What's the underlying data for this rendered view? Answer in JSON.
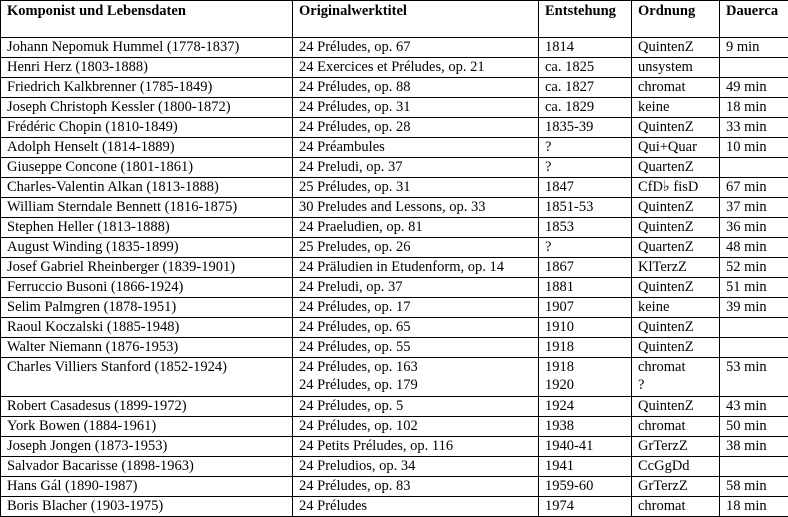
{
  "headers": {
    "composer": "Komponist und Lebensdaten",
    "title": "Originalwerktitel",
    "created": "Entstehung",
    "order": "Ordnung",
    "duration": "Dauerca"
  },
  "rows": [
    {
      "composer": "Johann Nepomuk Hummel (1778-1837)",
      "title": [
        "24 Préludes, op. 67"
      ],
      "created": [
        "1814"
      ],
      "order": [
        "QuintenZ"
      ],
      "duration": "9 min"
    },
    {
      "composer": "Henri Herz (1803-1888)",
      "title": [
        "24 Exercices et Préludes, op. 21"
      ],
      "created": [
        "ca. 1825"
      ],
      "order": [
        "unsystem"
      ],
      "duration": ""
    },
    {
      "composer": "Friedrich Kalkbrenner (1785-1849)",
      "title": [
        "24 Préludes, op. 88"
      ],
      "created": [
        "ca. 1827"
      ],
      "order": [
        "chromat"
      ],
      "duration": "49 min"
    },
    {
      "composer": "Joseph Christoph Kessler (1800-1872)",
      "title": [
        "24 Préludes, op. 31"
      ],
      "created": [
        "ca. 1829"
      ],
      "order": [
        "keine"
      ],
      "duration": "18 min"
    },
    {
      "composer": "Frédéric Chopin (1810-1849)",
      "title": [
        "24 Préludes, op. 28"
      ],
      "created": [
        "1835-39"
      ],
      "order": [
        "QuintenZ"
      ],
      "duration": "33 min"
    },
    {
      "composer": "Adolph Henselt (1814-1889)",
      "title": [
        "24 Préambules"
      ],
      "created": [
        "?"
      ],
      "order": [
        "Qui+Quar"
      ],
      "duration": "10 min"
    },
    {
      "composer": "Giuseppe Concone (1801-1861)",
      "title": [
        "24 Preludi, op. 37"
      ],
      "created": [
        "?"
      ],
      "order": [
        "QuartenZ"
      ],
      "duration": ""
    },
    {
      "composer": "Charles-Valentin Alkan (1813-1888)",
      "title": [
        "25 Préludes, op. 31"
      ],
      "created": [
        "1847"
      ],
      "order": [
        "CfD♭ fisD"
      ],
      "duration": "67 min"
    },
    {
      "composer": "William Sterndale Bennett (1816-1875)",
      "title": [
        "30 Preludes and Lessons, op. 33"
      ],
      "created": [
        "1851-53"
      ],
      "order": [
        "QuintenZ"
      ],
      "duration": "37 min"
    },
    {
      "composer": "Stephen Heller (1813-1888)",
      "title": [
        "24 Praeludien, op. 81"
      ],
      "created": [
        "1853"
      ],
      "order": [
        "QuintenZ"
      ],
      "duration": "36 min"
    },
    {
      "composer": "August Winding (1835-1899)",
      "title": [
        "25 Preludes, op. 26"
      ],
      "created": [
        "?"
      ],
      "order": [
        "QuartenZ"
      ],
      "duration": "48 min"
    },
    {
      "composer": "Josef Gabriel Rheinberger (1839-1901)",
      "title": [
        "24 Präludien in Etudenform, op. 14"
      ],
      "created": [
        "1867"
      ],
      "order": [
        "KlTerzZ"
      ],
      "duration": "52 min"
    },
    {
      "composer": "Ferruccio Busoni (1866-1924)",
      "title": [
        "24 Preludi, op. 37"
      ],
      "created": [
        "1881"
      ],
      "order": [
        "QuintenZ"
      ],
      "duration": "51 min"
    },
    {
      "composer": "Selim Palmgren (1878-1951)",
      "title": [
        "24 Préludes, op. 17"
      ],
      "created": [
        "1907"
      ],
      "order": [
        "keine"
      ],
      "duration": "39 min"
    },
    {
      "composer": "Raoul Koczalski (1885-1948)",
      "title": [
        "24 Préludes, op. 65"
      ],
      "created": [
        "1910"
      ],
      "order": [
        "QuintenZ"
      ],
      "duration": ""
    },
    {
      "composer": "Walter Niemann (1876-1953)",
      "title": [
        "24 Préludes, op. 55"
      ],
      "created": [
        "1918"
      ],
      "order": [
        "QuintenZ"
      ],
      "duration": ""
    },
    {
      "composer": "Charles Villiers Stanford (1852-1924)",
      "title": [
        "24 Préludes, op. 163",
        "24 Préludes, op. 179"
      ],
      "created": [
        "1918",
        "1920"
      ],
      "order": [
        "chromat",
        "?"
      ],
      "duration": "53 min"
    },
    {
      "composer": "Robert Casadesus (1899-1972)",
      "title": [
        "24 Préludes, op. 5"
      ],
      "created": [
        "1924"
      ],
      "order": [
        "QuintenZ"
      ],
      "duration": "43 min"
    },
    {
      "composer": "York Bowen (1884-1961)",
      "title": [
        "24 Préludes, op. 102"
      ],
      "created": [
        "1938"
      ],
      "order": [
        "chromat"
      ],
      "duration": "50 min"
    },
    {
      "composer": "Joseph Jongen (1873-1953)",
      "title": [
        "24 Petits Préludes, op. 116"
      ],
      "created": [
        "1940-41"
      ],
      "order": [
        "GrTerzZ"
      ],
      "duration": "38 min"
    },
    {
      "composer": "Salvador Bacarisse (1898-1963)",
      "title": [
        "24 Preludios, op. 34"
      ],
      "created": [
        "1941"
      ],
      "order": [
        "CcGgDd"
      ],
      "duration": ""
    },
    {
      "composer": "Hans Gál (1890-1987)",
      "title": [
        "24 Préludes, op. 83"
      ],
      "created": [
        "1959-60"
      ],
      "order": [
        "GrTerzZ"
      ],
      "duration": "58 min"
    },
    {
      "composer": "Boris Blacher (1903-1975)",
      "title": [
        "24 Préludes"
      ],
      "created": [
        "1974"
      ],
      "order": [
        "chromat"
      ],
      "duration": "18 min"
    }
  ]
}
